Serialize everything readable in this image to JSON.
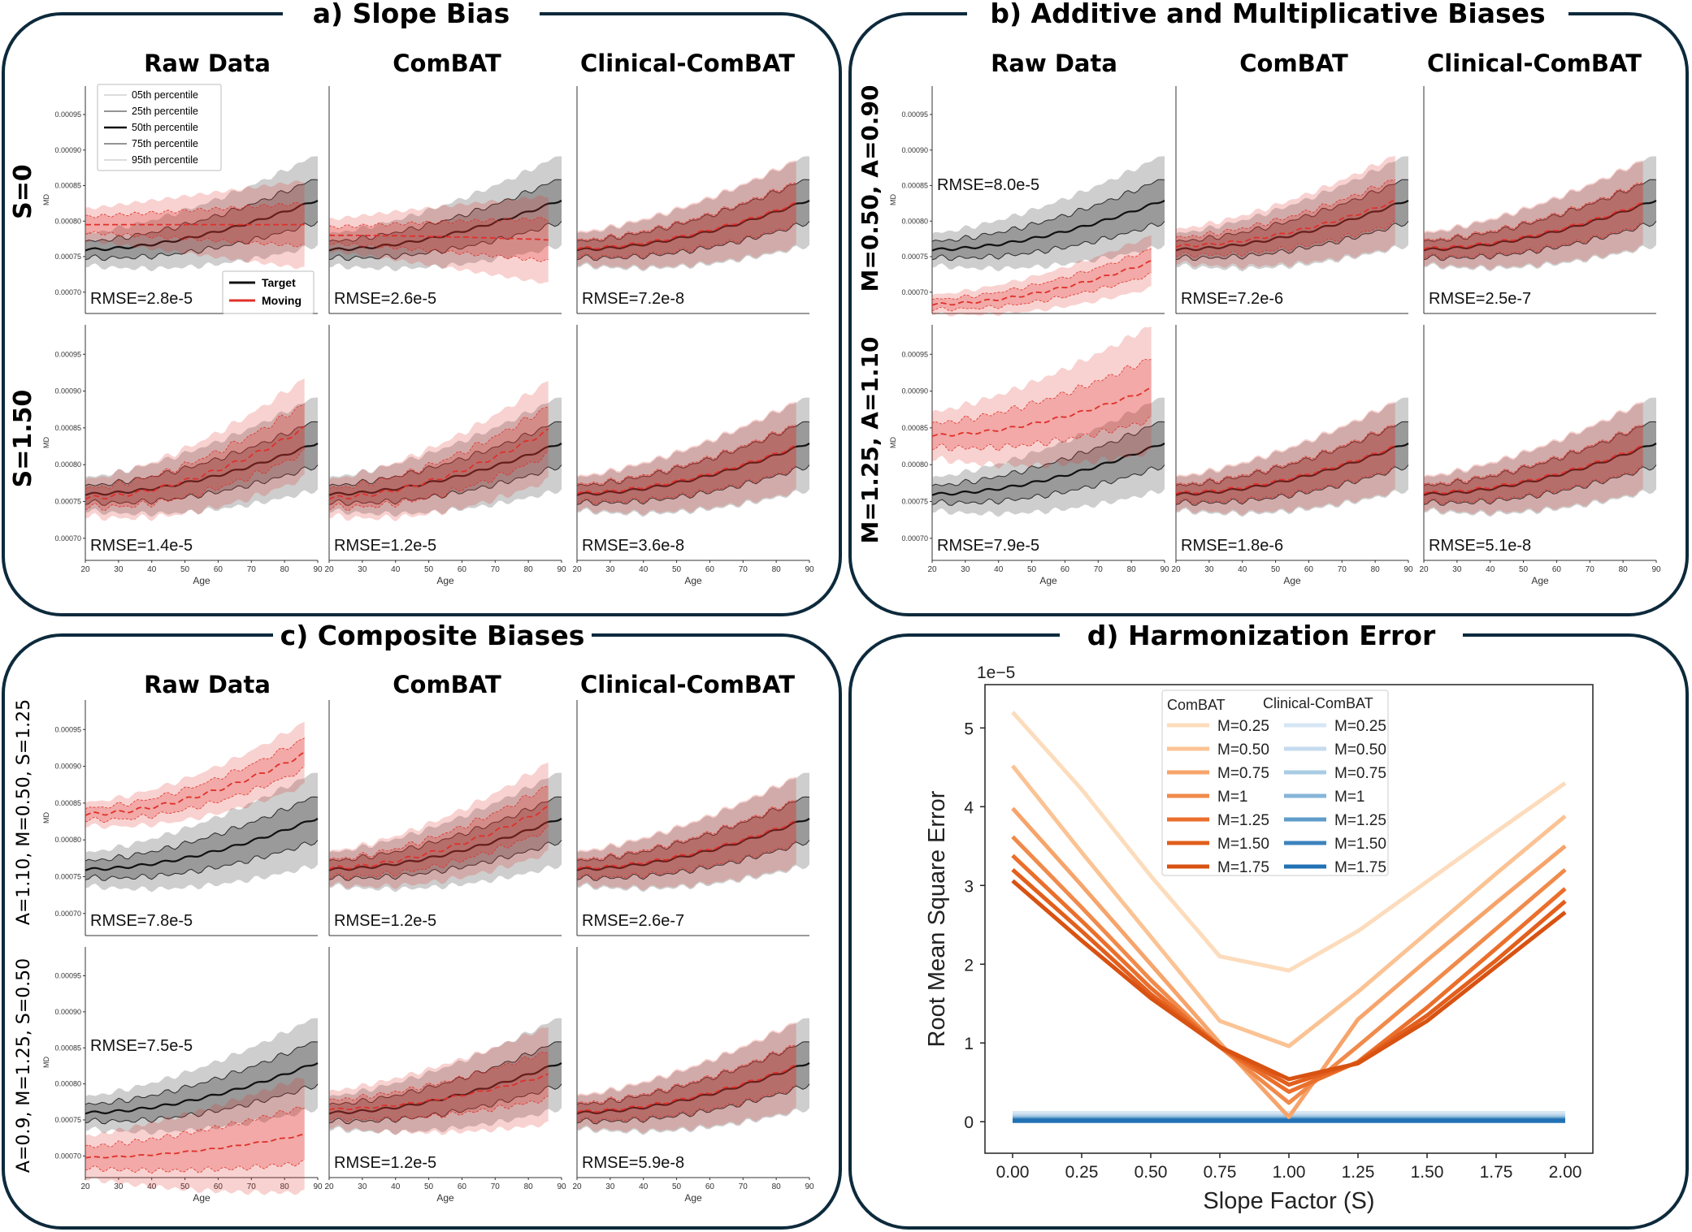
{
  "colors": {
    "frame": "#0d2a3c",
    "target": "#1f1f1f",
    "moving": "#e0302a",
    "combat_scale": [
      "#fcdcbc",
      "#fbc394",
      "#f6a46b",
      "#f08a4b",
      "#ea6f2c",
      "#e25f1d",
      "#d85212"
    ],
    "clinical_scale": [
      "#d6e6f4",
      "#c6dbef",
      "#a9cce4",
      "#86b5d8",
      "#5f9cca",
      "#3c83bd",
      "#2171b5"
    ]
  },
  "panels": {
    "a": {
      "title": "a) Slope Bias",
      "columns": [
        "Raw Data",
        "ComBAT",
        "Clinical-ComBAT"
      ],
      "rows": [
        {
          "label": "S=0",
          "cells": [
            {
              "rmse": "RMSE=2.8e-5",
              "moving": {
                "base": 0.000795,
                "slope": 0.0,
                "noise": 1.0,
                "end": 86
              }
            },
            {
              "rmse": "RMSE=2.6e-5",
              "moving": {
                "base": 0.00078,
                "slope": -0.1,
                "noise": 1.0,
                "end": 86
              }
            },
            {
              "rmse": "RMSE=7.2e-8",
              "moving": {
                "base": 0.000762,
                "slope": 1.0,
                "noise": 1.0,
                "end": 86
              }
            }
          ]
        },
        {
          "label": "S=1.50",
          "cells": [
            {
              "rmse": "RMSE=1.4e-5",
              "moving": {
                "base": 0.000755,
                "slope": 1.5,
                "noise": 1.1,
                "end": 86
              }
            },
            {
              "rmse": "RMSE=1.2e-5",
              "moving": {
                "base": 0.000755,
                "slope": 1.45,
                "noise": 1.1,
                "end": 86
              }
            },
            {
              "rmse": "RMSE=3.6e-8",
              "moving": {
                "base": 0.000762,
                "slope": 1.0,
                "noise": 1.0,
                "end": 86
              }
            }
          ]
        }
      ]
    },
    "b": {
      "title": "b) Additive and Multiplicative Biases",
      "columns": [
        "Raw Data",
        "ComBAT",
        "Clinical-ComBAT"
      ],
      "rows": [
        {
          "label": "M=0.50, A=0.90",
          "cells": [
            {
              "rmse": "RMSE=8.0e-5",
              "moving": {
                "base": 0.000683,
                "slope": 0.95,
                "noise": 0.6,
                "end": 86
              }
            },
            {
              "rmse": "RMSE=7.2e-6",
              "moving": {
                "base": 0.000765,
                "slope": 1.0,
                "noise": 1.05,
                "end": 86
              }
            },
            {
              "rmse": "RMSE=2.5e-7",
              "moving": {
                "base": 0.000762,
                "slope": 1.0,
                "noise": 1.0,
                "end": 86
              }
            }
          ]
        },
        {
          "label": "M=1.25, A=1.10",
          "cells": [
            {
              "rmse": "RMSE=7.9e-5",
              "moving": {
                "base": 0.00084,
                "slope": 1.0,
                "noise": 1.4,
                "end": 86
              }
            },
            {
              "rmse": "RMSE=1.8e-6",
              "moving": {
                "base": 0.000762,
                "slope": 1.0,
                "noise": 1.0,
                "end": 86
              }
            },
            {
              "rmse": "RMSE=5.1e-8",
              "moving": {
                "base": 0.000762,
                "slope": 1.0,
                "noise": 1.0,
                "end": 86
              }
            }
          ]
        }
      ]
    },
    "c": {
      "title": "c) Composite Biases",
      "columns": [
        "Raw Data",
        "ComBAT",
        "Clinical-ComBAT"
      ],
      "rows": [
        {
          "label": "A=1.10, M=0.50, S=1.25",
          "cells": [
            {
              "rmse": "RMSE=7.8e-5",
              "moving": {
                "base": 0.000835,
                "slope": 1.3,
                "noise": 0.7,
                "end": 86
              }
            },
            {
              "rmse": "RMSE=1.2e-5",
              "moving": {
                "base": 0.000762,
                "slope": 1.3,
                "noise": 1.0,
                "end": 86
              }
            },
            {
              "rmse": "RMSE=2.6e-7",
              "moving": {
                "base": 0.000762,
                "slope": 1.0,
                "noise": 1.0,
                "end": 86
              }
            }
          ]
        },
        {
          "label": "A=0.9, M=1.25, S=0.50",
          "cells": [
            {
              "rmse": "RMSE=7.5e-5",
              "moving": {
                "base": 0.000698,
                "slope": 0.5,
                "noise": 1.3,
                "end": 86
              }
            },
            {
              "rmse": "RMSE=1.2e-5",
              "moving": {
                "base": 0.000765,
                "slope": 0.75,
                "noise": 1.1,
                "end": 86
              }
            },
            {
              "rmse": "RMSE=5.9e-8",
              "moving": {
                "base": 0.000762,
                "slope": 1.0,
                "noise": 1.0,
                "end": 86
              }
            }
          ]
        }
      ]
    },
    "d": {
      "title": "d) Harmonization Error"
    }
  },
  "small_plot": {
    "ylabel": "MD",
    "xlabel": "Age",
    "x_ticks": [
      "20",
      "30",
      "40",
      "50",
      "60",
      "70",
      "80",
      "90"
    ],
    "y_ticks": [
      "0.00070",
      "0.00075",
      "0.00080",
      "0.00085",
      "0.00090",
      "0.00095"
    ],
    "xlim": [
      20,
      90
    ],
    "ylim": [
      0.00067,
      0.00099
    ]
  },
  "percentile_legend": [
    "05th percentile",
    "25th percentile",
    "50th percentile",
    "75th percentile",
    "95th percentile"
  ],
  "group_legend": [
    "Target",
    "Moving"
  ],
  "chart_data": {
    "type": "line",
    "title": "d) Harmonization Error",
    "xlabel": "Slope Factor (S)",
    "ylabel": "Root Mean Square Error",
    "y_scale_label": "1e−5",
    "xlim": [
      -0.1,
      2.1
    ],
    "ylim": [
      -0.4,
      5.55
    ],
    "x_ticks": [
      "0.00",
      "0.25",
      "0.50",
      "0.75",
      "1.00",
      "1.25",
      "1.50",
      "1.75",
      "2.00"
    ],
    "y_ticks": [
      "0",
      "1",
      "2",
      "3",
      "4",
      "5"
    ],
    "x": [
      0.0,
      0.25,
      0.5,
      0.75,
      1.0,
      1.25,
      1.5,
      1.75,
      2.0
    ],
    "legend_titles": [
      "ComBAT",
      "Clinical-ComBAT"
    ],
    "series": [
      {
        "group": "ComBAT",
        "name": "M=0.25",
        "values": [
          5.2,
          4.22,
          3.12,
          2.1,
          1.92,
          2.42,
          3.05,
          3.68,
          4.3
        ]
      },
      {
        "group": "ComBAT",
        "name": "M=0.50",
        "values": [
          4.52,
          3.42,
          2.35,
          1.28,
          0.96,
          1.65,
          2.4,
          3.15,
          3.88
        ]
      },
      {
        "group": "ComBAT",
        "name": "M=0.75",
        "values": [
          3.98,
          3.0,
          2.0,
          1.0,
          0.06,
          1.3,
          2.05,
          2.78,
          3.5
        ]
      },
      {
        "group": "ComBAT",
        "name": "M=1",
        "values": [
          3.62,
          2.72,
          1.8,
          0.95,
          0.24,
          0.96,
          1.7,
          2.45,
          3.2
        ]
      },
      {
        "group": "ComBAT",
        "name": "M=1.25",
        "values": [
          3.38,
          2.55,
          1.7,
          0.95,
          0.38,
          0.76,
          1.45,
          2.2,
          2.96
        ]
      },
      {
        "group": "ComBAT",
        "name": "M=1.50",
        "values": [
          3.2,
          2.42,
          1.62,
          0.95,
          0.47,
          0.75,
          1.35,
          2.05,
          2.8
        ]
      },
      {
        "group": "ComBAT",
        "name": "M=1.75",
        "values": [
          3.06,
          2.3,
          1.57,
          0.95,
          0.54,
          0.74,
          1.28,
          1.97,
          2.66
        ]
      },
      {
        "group": "Clinical-ComBAT",
        "name": "M=0.25",
        "values": [
          0.11,
          0.11,
          0.11,
          0.11,
          0.11,
          0.11,
          0.11,
          0.11,
          0.11
        ]
      },
      {
        "group": "Clinical-ComBAT",
        "name": "M=0.50",
        "values": [
          0.08,
          0.08,
          0.08,
          0.08,
          0.08,
          0.08,
          0.08,
          0.08,
          0.08
        ]
      },
      {
        "group": "Clinical-ComBAT",
        "name": "M=0.75",
        "values": [
          0.06,
          0.06,
          0.06,
          0.06,
          0.06,
          0.06,
          0.06,
          0.06,
          0.06
        ]
      },
      {
        "group": "Clinical-ComBAT",
        "name": "M=1",
        "values": [
          0.04,
          0.04,
          0.04,
          0.04,
          0.04,
          0.04,
          0.04,
          0.04,
          0.04
        ]
      },
      {
        "group": "Clinical-ComBAT",
        "name": "M=1.25",
        "values": [
          0.03,
          0.03,
          0.03,
          0.03,
          0.03,
          0.03,
          0.03,
          0.03,
          0.03
        ]
      },
      {
        "group": "Clinical-ComBAT",
        "name": "M=1.50",
        "values": [
          0.02,
          0.02,
          0.02,
          0.02,
          0.02,
          0.02,
          0.02,
          0.02,
          0.02
        ]
      },
      {
        "group": "Clinical-ComBAT",
        "name": "M=1.75",
        "values": [
          0.01,
          0.01,
          0.01,
          0.01,
          0.01,
          0.01,
          0.01,
          0.01,
          0.01
        ]
      }
    ]
  }
}
